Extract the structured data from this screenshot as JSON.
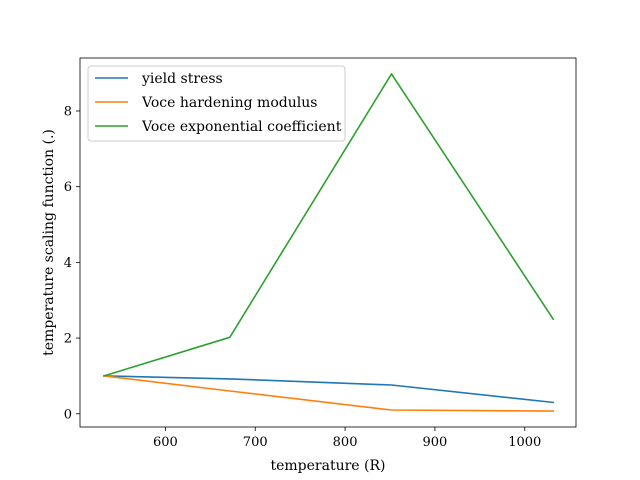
{
  "chart_data": {
    "type": "line",
    "xlabel": "temperature (R)",
    "ylabel": "temperature scaling function (.)",
    "xlim": [
      505,
      1057
    ],
    "ylim": [
      -0.35,
      9.4
    ],
    "xticks": [
      600,
      700,
      800,
      900,
      1000
    ],
    "yticks": [
      0,
      2,
      4,
      6,
      8
    ],
    "grid": false,
    "legend_position": "top-left",
    "series": [
      {
        "name": "yield stress",
        "color": "#1f77b4",
        "x": [
          531.67,
          671.67,
          851.67,
          1031.67
        ],
        "y": [
          1.0,
          0.92,
          0.76,
          0.3
        ]
      },
      {
        "name": "Voce hardening modulus",
        "color": "#ff7f0e",
        "x": [
          531.67,
          671.67,
          851.67,
          1031.67
        ],
        "y": [
          1.0,
          0.6,
          0.1,
          0.07
        ]
      },
      {
        "name": "Voce exponential coefficient",
        "color": "#2ca02c",
        "x": [
          531.67,
          671.67,
          851.67,
          1031.67
        ],
        "y": [
          1.0,
          2.02,
          8.98,
          2.5
        ]
      }
    ]
  }
}
